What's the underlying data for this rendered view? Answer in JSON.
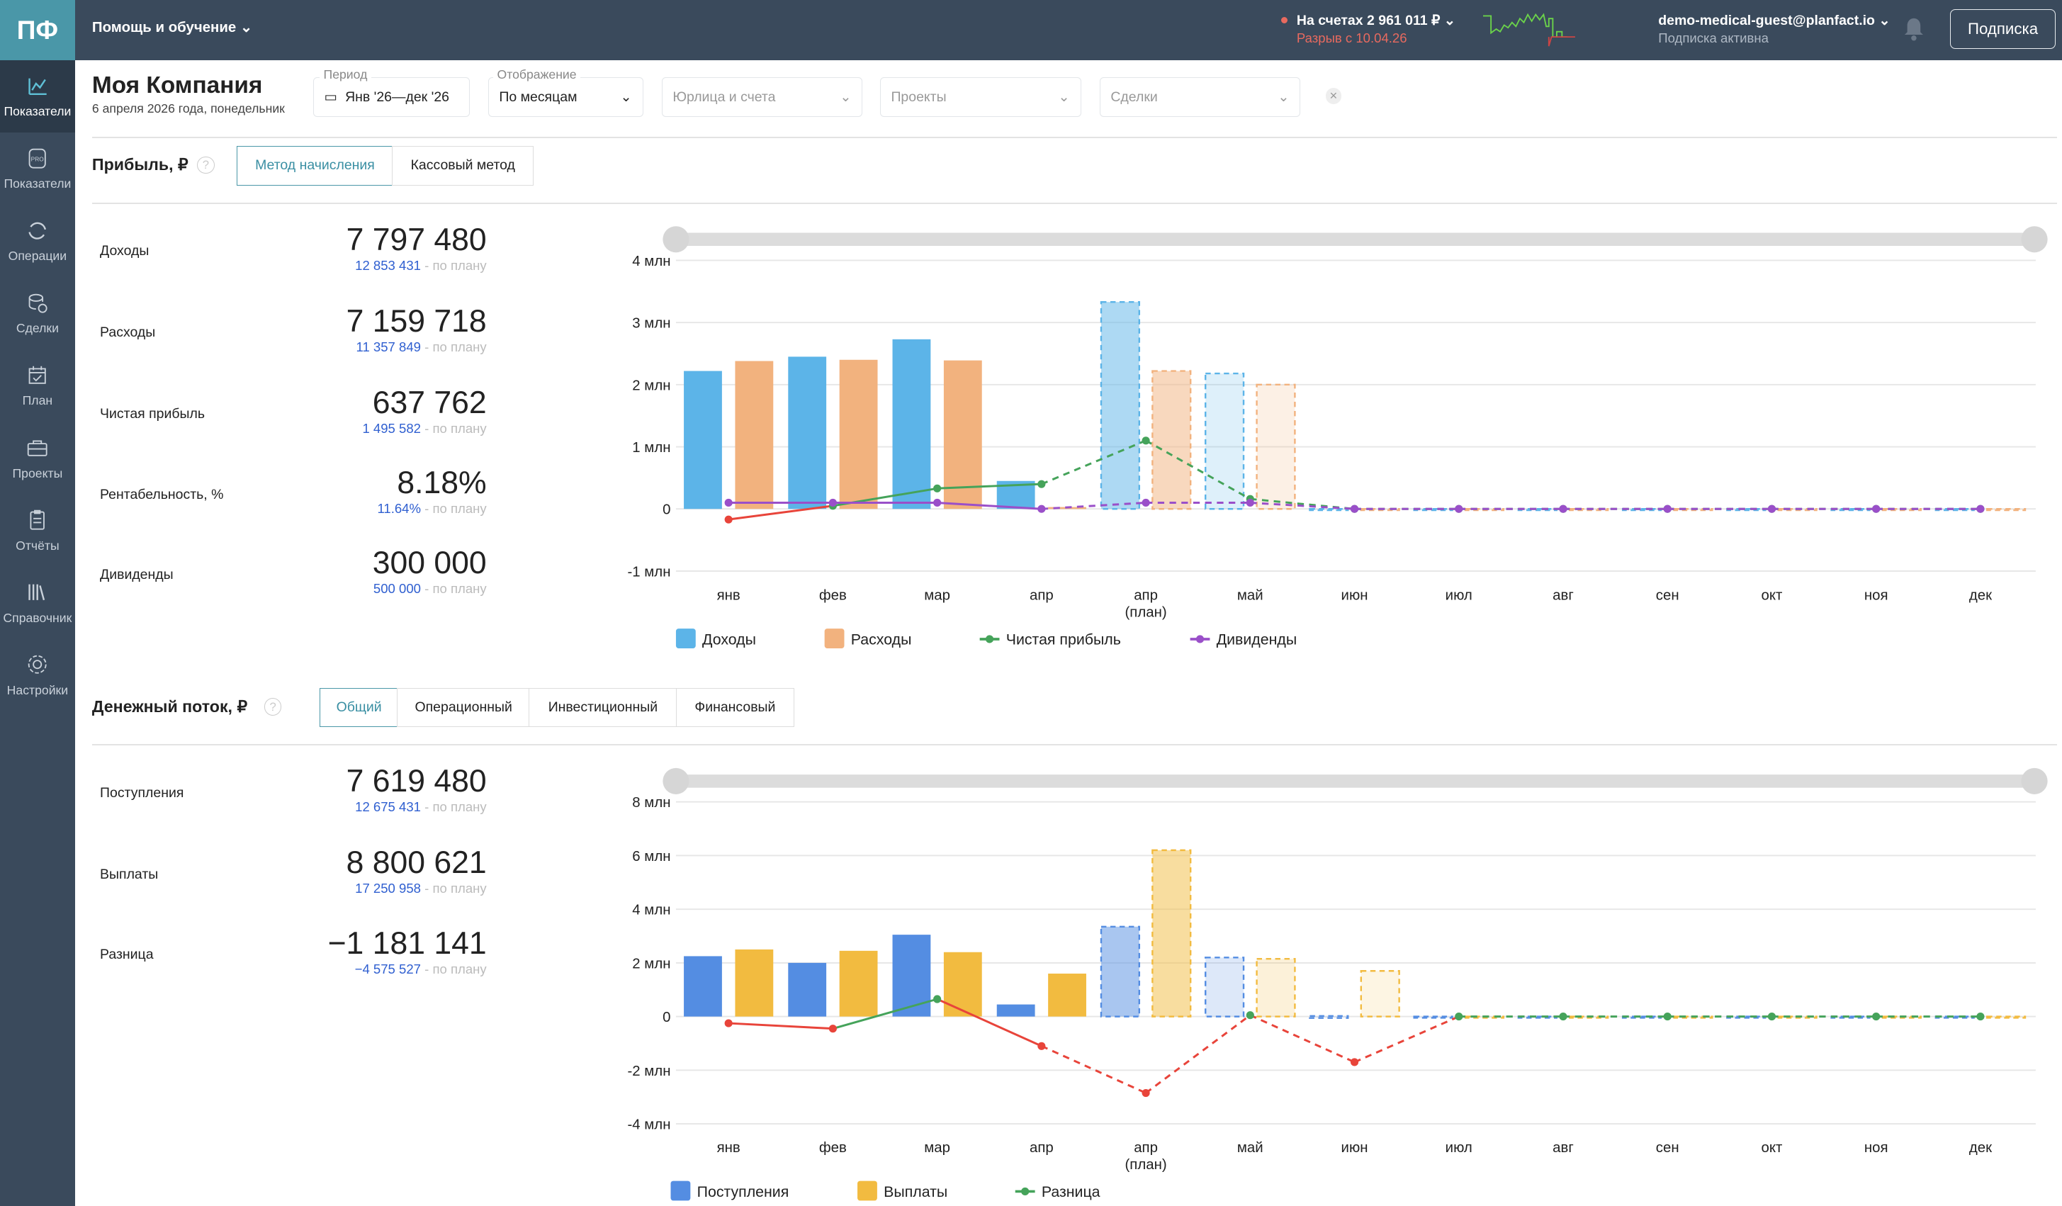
{
  "app": {
    "logo": "ПФ",
    "help_menu": "Помощь и обучение ⌄",
    "account_balance": "На счетах 2 961 011 ₽ ⌄",
    "gap_warning": "Разрыв с 10.04.26",
    "user_email": "demo-medical-guest@planfact.io ⌄",
    "subscription_status": "Подписка активна",
    "subscribe_button": "Подписка"
  },
  "sidebar": {
    "items": [
      {
        "label": "Показатели",
        "icon": "chart-line-icon",
        "active": true
      },
      {
        "label": "Показатели",
        "icon": "pro-badge-icon"
      },
      {
        "label": "Операции",
        "icon": "refresh-icon"
      },
      {
        "label": "Сделки",
        "icon": "coins-icon"
      },
      {
        "label": "План",
        "icon": "calendar-check-icon"
      },
      {
        "label": "Проекты",
        "icon": "briefcase-icon"
      },
      {
        "label": "Отчёты",
        "icon": "clipboard-icon"
      },
      {
        "label": "Справочник",
        "icon": "books-icon"
      },
      {
        "label": "Настройки",
        "icon": "gear-icon"
      }
    ]
  },
  "header": {
    "title": "Моя Компания",
    "date": "6 апреля 2026 года, понедельник"
  },
  "filters": {
    "period_label": "Период",
    "period_value": "Янв '26—дек '26",
    "display_label": "Отображение",
    "display_value": "По месяцам",
    "entities_placeholder": "Юрлица и счета",
    "projects_placeholder": "Проекты",
    "deals_placeholder": "Сделки",
    "clear": "×"
  },
  "profit": {
    "title": "Прибыль, ₽",
    "help": "?",
    "tabs": [
      "Метод начисления",
      "Кассовый метод"
    ],
    "plan_suffix": " - по плану",
    "kpis": [
      {
        "label": "Доходы",
        "value": "7 797 480",
        "plan": "12 853 431"
      },
      {
        "label": "Расходы",
        "value": "7 159 718",
        "plan": "11 357 849"
      },
      {
        "label": "Чистая прибыль",
        "value": "637 762",
        "plan": "1 495 582"
      },
      {
        "label": "Рентабельность, %",
        "value": "8.18%",
        "plan": "11.64%"
      },
      {
        "label": "Дивиденды",
        "value": "300 000",
        "plan": "500 000"
      }
    ]
  },
  "cashflow": {
    "title": "Денежный поток, ₽",
    "help": "?",
    "tabs": [
      "Общий",
      "Операционный",
      "Инвестиционный",
      "Финансовый"
    ],
    "plan_suffix": " - по плану",
    "kpis": [
      {
        "label": "Поступления",
        "value": "7 619 480",
        "plan": "12 675 431"
      },
      {
        "label": "Выплаты",
        "value": "8 800 621",
        "plan": "17 250 958"
      },
      {
        "label": "Разница",
        "value": "−1 181 141",
        "plan": "−4 575 527"
      }
    ]
  },
  "chart_data": [
    {
      "type": "bar",
      "categories": [
        "янв",
        "фев",
        "мар",
        "апр",
        "апр\n(план)",
        "май",
        "июн",
        "июл",
        "авг",
        "сен",
        "окт",
        "ноя",
        "дек"
      ],
      "plan_from_index": 4,
      "yticks": [
        "4 млн",
        "3 млн",
        "2 млн",
        "1 млн",
        "0",
        "-1 млн"
      ],
      "ylim": [
        -1,
        4
      ],
      "unit": "млн ₽",
      "series": [
        {
          "name": "Доходы",
          "kind": "bar",
          "color": "#5cb4e8",
          "values": [
            2.22,
            2.45,
            2.73,
            0.45,
            3.33,
            2.18,
            0,
            0,
            0,
            0,
            0,
            0,
            0
          ]
        },
        {
          "name": "Расходы",
          "kind": "bar",
          "color": "#f2b27e",
          "values": [
            2.38,
            2.4,
            2.39,
            0.03,
            2.22,
            2.0,
            0,
            0,
            0,
            0,
            0,
            0,
            0
          ]
        },
        {
          "name": "Чистая прибыль",
          "kind": "line",
          "color": "#45a35a",
          "neg_color": "#e8443a",
          "values": [
            -0.17,
            0.05,
            0.33,
            0.4,
            1.1,
            0.16,
            0,
            0,
            0,
            0,
            0,
            0,
            0
          ]
        },
        {
          "name": "Дивиденды",
          "kind": "line",
          "color": "#9a4fc9",
          "values": [
            0.1,
            0.1,
            0.1,
            0,
            0.1,
            0.1,
            0,
            0,
            0,
            0,
            0,
            0,
            0
          ]
        }
      ],
      "legend": "bottom",
      "grid": true
    },
    {
      "type": "bar",
      "categories": [
        "янв",
        "фев",
        "мар",
        "апр",
        "апр\n(план)",
        "май",
        "июн",
        "июл",
        "авг",
        "сен",
        "окт",
        "ноя",
        "дек"
      ],
      "plan_from_index": 4,
      "yticks": [
        "8 млн",
        "6 млн",
        "4 млн",
        "2 млн",
        "0",
        "-2 млн",
        "-4 млн"
      ],
      "ylim": [
        -4,
        8
      ],
      "unit": "млн ₽",
      "series": [
        {
          "name": "Поступления",
          "kind": "bar",
          "color": "#548de2",
          "values": [
            2.25,
            2.0,
            3.05,
            0.45,
            3.35,
            2.2,
            0.02,
            0,
            0,
            0,
            0,
            0,
            0
          ]
        },
        {
          "name": "Выплаты",
          "kind": "bar",
          "color": "#f2bb40",
          "values": [
            2.5,
            2.45,
            2.4,
            1.6,
            6.2,
            2.15,
            1.7,
            0,
            0,
            0,
            0,
            0,
            0
          ]
        },
        {
          "name": "Разница",
          "kind": "line",
          "color": "#45a35a",
          "neg_color": "#e8443a",
          "values": [
            -0.25,
            -0.45,
            0.65,
            -1.1,
            -2.85,
            0.05,
            -1.7,
            0,
            0,
            0,
            0,
            0,
            0
          ]
        }
      ],
      "legend": "bottom",
      "grid": true
    }
  ]
}
